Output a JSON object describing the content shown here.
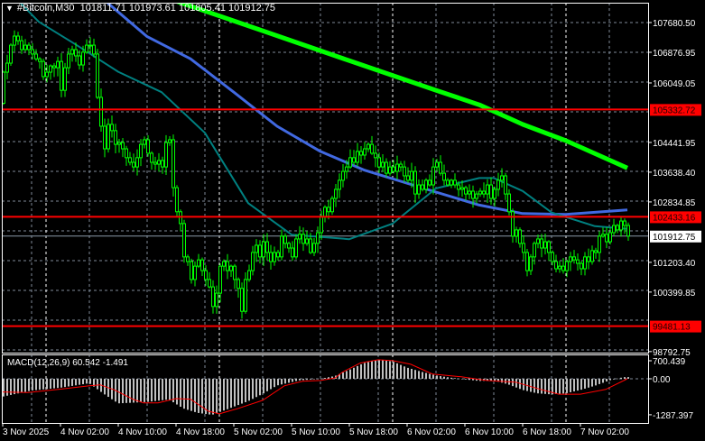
{
  "header": {
    "symbol": "#Bitcoin,M30",
    "open": "101811.71",
    "high": "101973.61",
    "low": "101805.41",
    "close": "101912.75"
  },
  "colors": {
    "background": "#000000",
    "candle": "#00ff00",
    "grid": "#7f8a99",
    "ma_green": "#00ff00",
    "ma_blue": "#4169e1",
    "ma_teal": "#008080",
    "level_line": "#ff0000",
    "macd_histogram": "#c0c0c0",
    "macd_signal": "#ff0000"
  },
  "chart_data": {
    "type": "candlestick",
    "timeframe": "M30",
    "start_time": "2025-11-03T18:00",
    "closes": [
      106340,
      106584,
      107070,
      107315,
      107190,
      106950,
      107070,
      106950,
      106830,
      106700,
      106630,
      106220,
      106340,
      106510,
      106460,
      106630,
      105850,
      106460,
      106830,
      106950,
      106780,
      106535,
      106880,
      107070,
      107070,
      106830,
      105660,
      104880,
      104270,
      104930,
      104760,
      104390,
      104440,
      104270,
      104030,
      103905,
      103780,
      104030,
      104390,
      104515,
      104150,
      103905,
      103855,
      103955,
      103780,
      104440,
      104515,
      103220,
      102570,
      102250,
      101350,
      101225,
      100740,
      101100,
      101270,
      100980,
      100740,
      100540,
      100010,
      100370,
      101100,
      101225,
      100980,
      101100,
      100740,
      100500,
      99880,
      100740,
      100980,
      101470,
      101665,
      101350,
      101760,
      101470,
      101225,
      101470,
      101350,
      101910,
      101715,
      101590,
      101350,
      101835,
      101960,
      101715,
      101835,
      101470,
      101715,
      102005,
      102445,
      102690,
      102570,
      102930,
      103175,
      103420,
      103660,
      103780,
      104030,
      103905,
      104200,
      104100,
      104270,
      104390,
      104150,
      104030,
      103780,
      103905,
      103610,
      103780,
      103660,
      103855,
      103780,
      103540,
      103420,
      103660,
      103050,
      103295,
      103175,
      103420,
      103295,
      103780,
      103905,
      103610,
      103420,
      103295,
      103420,
      103295,
      103175,
      103220,
      103050,
      103125,
      102930,
      103050,
      103125,
      103050,
      103295,
      102930,
      103175,
      103420,
      103540,
      103050,
      102570,
      101910,
      102080,
      101715,
      101470,
      100980,
      101350,
      101715,
      101835,
      101590,
      101760,
      101470,
      101225,
      101030,
      101100,
      100980,
      101225,
      101350,
      101270,
      101175,
      101030,
      101350,
      101225,
      101520,
      101470,
      101910,
      101960,
      101760,
      102005,
      102200,
      102080,
      102320,
      102200,
      101912.75
    ],
    "moving_averages": [
      {
        "color": "#00ff00",
        "points": [
          [
            "2025-11-04T18:00",
            108260
          ],
          [
            "2025-11-05T06:00",
            107460
          ],
          [
            "2025-11-05T18:00",
            106650
          ],
          [
            "2025-11-06T06:00",
            105850
          ],
          [
            "2025-11-06T12:00",
            105460
          ],
          [
            "2025-11-06T18:00",
            104930
          ],
          [
            "2025-11-07T00:00",
            104490
          ],
          [
            "2025-11-07T08:30",
            103750
          ]
        ]
      },
      {
        "color": "#4169e1",
        "points": [
          [
            "2025-11-04T08:00",
            108300
          ],
          [
            "2025-11-04T14:00",
            107300
          ],
          [
            "2025-11-04T20:00",
            106700
          ],
          [
            "2025-11-05T02:00",
            105800
          ],
          [
            "2025-11-05T08:00",
            104880
          ],
          [
            "2025-11-05T14:00",
            104200
          ],
          [
            "2025-11-05T20:00",
            103700
          ],
          [
            "2025-11-06T06:00",
            103100
          ],
          [
            "2025-11-06T12:00",
            102750
          ],
          [
            "2025-11-06T18:00",
            102520
          ],
          [
            "2025-11-07T00:00",
            102500
          ],
          [
            "2025-11-07T08:30",
            102620
          ]
        ]
      },
      {
        "color": "#008080",
        "points": [
          [
            "2025-11-03T20:00",
            108300
          ],
          [
            "2025-11-03T23:00",
            107700
          ],
          [
            "2025-11-04T04:00",
            107100
          ],
          [
            "2025-11-04T10:00",
            106350
          ],
          [
            "2025-11-04T16:00",
            105800
          ],
          [
            "2025-11-04T22:00",
            104700
          ],
          [
            "2025-11-05T04:00",
            102800
          ],
          [
            "2025-11-05T10:00",
            101950
          ],
          [
            "2025-11-05T18:00",
            101830
          ],
          [
            "2025-11-06T00:00",
            102250
          ],
          [
            "2025-11-06T06:00",
            103200
          ],
          [
            "2025-11-06T12:00",
            103480
          ],
          [
            "2025-11-06T14:00",
            103480
          ],
          [
            "2025-11-06T18:00",
            103130
          ],
          [
            "2025-11-06T22:00",
            102550
          ],
          [
            "2025-11-07T04:00",
            102180
          ],
          [
            "2025-11-07T08:30",
            102110
          ]
        ]
      }
    ],
    "levels": [
      {
        "price": 105332.72,
        "label": "105332.72"
      },
      {
        "price": 102433.16,
        "label": "102433.16"
      },
      {
        "price": 99481.13,
        "label": "99481.13"
      }
    ],
    "current_price": {
      "price": 101912.75,
      "label": "101912.75"
    },
    "y_axis_labels": [
      "107680.50",
      "106876.95",
      "106049.05",
      "104441.95",
      "103638.40",
      "102834.85",
      "101203.40",
      "100399.85",
      "98792.75"
    ],
    "x_axis_labels": [
      {
        "time": "2025-11-03T18:00",
        "label": "3 Nov 2025"
      },
      {
        "time": "2025-11-04T02:00",
        "label": "4 Nov 02:00"
      },
      {
        "time": "2025-11-04T10:00",
        "label": "4 Nov 10:00"
      },
      {
        "time": "2025-11-04T18:00",
        "label": "4 Nov 18:00"
      },
      {
        "time": "2025-11-05T02:00",
        "label": "5 Nov 02:00"
      },
      {
        "time": "2025-11-05T10:00",
        "label": "5 Nov 10:00"
      },
      {
        "time": "2025-11-05T18:00",
        "label": "5 Nov 18:00"
      },
      {
        "time": "2025-11-06T02:00",
        "label": "6 Nov 02:00"
      },
      {
        "time": "2025-11-06T10:00",
        "label": "6 Nov 10:00"
      },
      {
        "time": "2025-11-06T18:00",
        "label": "6 Nov 18:00"
      },
      {
        "time": "2025-11-07T02:00",
        "label": "7 Nov 02:00"
      }
    ],
    "macd": {
      "label": "MACD(12,26,9) 60.542 -1.491",
      "axis_labels": [
        {
          "value": 700.439,
          "label": "700.439"
        },
        {
          "value": 0,
          "label": "0.00"
        },
        {
          "value": -1287.397,
          "label": "-1287.397"
        }
      ],
      "histogram_points": [
        [
          "2025-11-03T18:00",
          -640
        ],
        [
          "2025-11-03T22:00",
          -420
        ],
        [
          "2025-11-04T02:00",
          -320
        ],
        [
          "2025-11-04T06:00",
          -160
        ],
        [
          "2025-11-04T08:00",
          -540
        ],
        [
          "2025-11-04T10:00",
          -880
        ],
        [
          "2025-11-04T14:00",
          -830
        ],
        [
          "2025-11-04T17:00",
          -740
        ],
        [
          "2025-11-04T19:00",
          -1060
        ],
        [
          "2025-11-04T21:00",
          -1220
        ],
        [
          "2025-11-04T23:00",
          -1290
        ],
        [
          "2025-11-05T01:00",
          -1100
        ],
        [
          "2025-11-05T04:00",
          -800
        ],
        [
          "2025-11-05T06:00",
          -540
        ],
        [
          "2025-11-05T08:00",
          -240
        ],
        [
          "2025-11-05T11:00",
          -60
        ],
        [
          "2025-11-05T14:00",
          0
        ],
        [
          "2025-11-05T16:00",
          100
        ],
        [
          "2025-11-05T18:00",
          320
        ],
        [
          "2025-11-05T20:00",
          560
        ],
        [
          "2025-11-05T22:00",
          680
        ],
        [
          "2025-11-06T00:00",
          620
        ],
        [
          "2025-11-06T02:00",
          400
        ],
        [
          "2025-11-06T04:00",
          250
        ],
        [
          "2025-11-06T06:00",
          120
        ],
        [
          "2025-11-06T08:00",
          40
        ],
        [
          "2025-11-06T10:00",
          -20
        ],
        [
          "2025-11-06T12:00",
          -80
        ],
        [
          "2025-11-06T14:00",
          -60
        ],
        [
          "2025-11-06T16:00",
          -200
        ],
        [
          "2025-11-06T18:00",
          -400
        ],
        [
          "2025-11-06T20:00",
          -520
        ],
        [
          "2025-11-06T22:00",
          -560
        ],
        [
          "2025-11-07T00:00",
          -520
        ],
        [
          "2025-11-07T02:00",
          -400
        ],
        [
          "2025-11-07T04:00",
          -250
        ],
        [
          "2025-11-07T06:00",
          -60
        ],
        [
          "2025-11-07T08:00",
          60
        ],
        [
          "2025-11-07T08:30",
          60.542
        ]
      ],
      "signal_points": [
        [
          "2025-11-03T18:00",
          -470
        ],
        [
          "2025-11-03T21:30",
          -490
        ],
        [
          "2025-11-04T02:00",
          -370
        ],
        [
          "2025-11-04T06:00",
          -250
        ],
        [
          "2025-11-04T07:30",
          -215
        ],
        [
          "2025-11-04T09:30",
          -400
        ],
        [
          "2025-11-04T12:00",
          -730
        ],
        [
          "2025-11-04T13:30",
          -860
        ],
        [
          "2025-11-04T15:30",
          -860
        ],
        [
          "2025-11-04T18:00",
          -710
        ],
        [
          "2025-11-04T20:00",
          -730
        ],
        [
          "2025-11-04T22:30",
          -1160
        ],
        [
          "2025-11-05T00:00",
          -1250
        ],
        [
          "2025-11-05T02:30",
          -1070
        ],
        [
          "2025-11-05T06:00",
          -770
        ],
        [
          "2025-11-05T09:00",
          -250
        ],
        [
          "2025-11-05T11:30",
          -90
        ],
        [
          "2025-11-05T14:00",
          -60
        ],
        [
          "2025-11-05T16:00",
          30
        ],
        [
          "2025-11-05T17:00",
          230
        ],
        [
          "2025-11-05T19:30",
          560
        ],
        [
          "2025-11-05T22:00",
          680
        ],
        [
          "2025-11-06T00:00",
          650
        ],
        [
          "2025-11-06T02:30",
          520
        ],
        [
          "2025-11-06T05:30",
          170
        ],
        [
          "2025-11-06T09:30",
          70
        ],
        [
          "2025-11-06T13:00",
          -60
        ],
        [
          "2025-11-06T17:00",
          -120
        ],
        [
          "2025-11-06T20:30",
          -380
        ],
        [
          "2025-11-06T23:00",
          -550
        ],
        [
          "2025-11-07T02:00",
          -550
        ],
        [
          "2025-11-07T05:30",
          -380
        ],
        [
          "2025-11-07T08:30",
          -1.491
        ]
      ]
    }
  }
}
